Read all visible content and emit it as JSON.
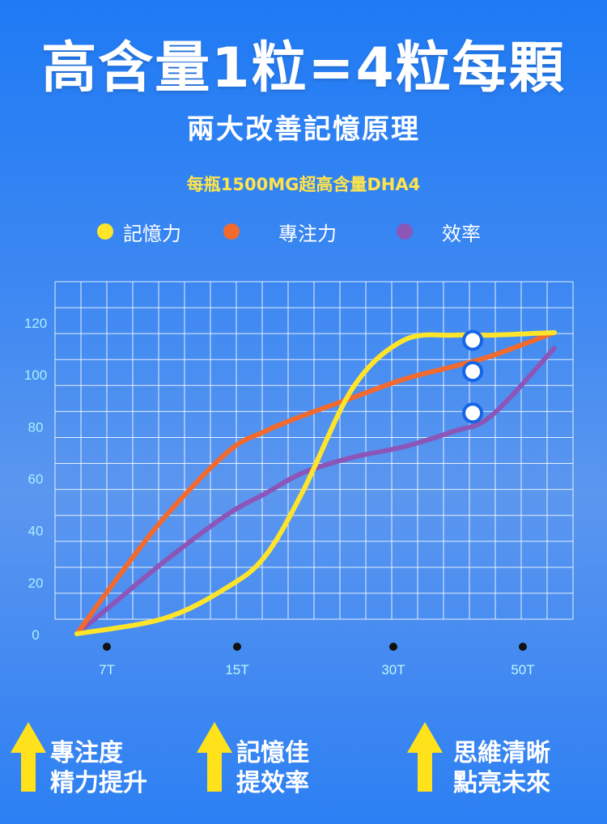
{
  "header": {
    "title": "高含量1粒=4粒每顆",
    "subtitle": "兩大改善記憶原理",
    "tagline": "每瓶1500MG超高含量DHA4"
  },
  "legend": [
    {
      "label": "記憶力",
      "color": "#ffe52a"
    },
    {
      "label": "專注力",
      "color": "#f36a2e"
    },
    {
      "label": "效率",
      "color": "#8b56b8"
    }
  ],
  "chart_data": {
    "type": "line",
    "y_ticks": [
      "0",
      "20",
      "40",
      "60",
      "80",
      "100",
      "120"
    ],
    "x_labels": [
      "7T",
      "15T",
      "30T",
      "50T"
    ],
    "ylim": [
      0,
      140
    ],
    "grid": true,
    "series": [
      {
        "name": "記憶力",
        "color": "#ffe52a",
        "points": [
          [
            0,
            0
          ],
          [
            7,
            6
          ],
          [
            12,
            18
          ],
          [
            15,
            30
          ],
          [
            18,
            55
          ],
          [
            22,
            95
          ],
          [
            26,
            113
          ],
          [
            30,
            115
          ],
          [
            33,
            115
          ],
          [
            38,
            116
          ]
        ]
      },
      {
        "name": "專注力",
        "color": "#f36a2e",
        "points": [
          [
            0,
            0
          ],
          [
            3,
            20
          ],
          [
            7,
            45
          ],
          [
            12,
            70
          ],
          [
            15,
            78
          ],
          [
            18,
            84
          ],
          [
            22,
            91
          ],
          [
            26,
            98
          ],
          [
            30,
            103
          ],
          [
            33,
            107
          ],
          [
            38,
            116
          ]
        ]
      },
      {
        "name": "效率",
        "color": "#8b56b8",
        "points": [
          [
            0,
            0
          ],
          [
            3,
            12
          ],
          [
            7,
            28
          ],
          [
            12,
            46
          ],
          [
            15,
            54
          ],
          [
            18,
            62
          ],
          [
            22,
            68
          ],
          [
            26,
            72
          ],
          [
            30,
            78
          ],
          [
            33,
            84
          ],
          [
            38,
            110
          ]
        ]
      }
    ],
    "markers": [
      {
        "x": 31.5,
        "y": 113,
        "series": "記憶力"
      },
      {
        "x": 31.5,
        "y": 101,
        "series": "專注力"
      },
      {
        "x": 31.5,
        "y": 85,
        "series": "效率"
      }
    ]
  },
  "footer": [
    {
      "line1": "專注度",
      "line2": "精力提升"
    },
    {
      "line1": "記憶佳",
      "line2": "提效率"
    },
    {
      "line1": "思維清晰",
      "line2": "點亮未來"
    }
  ]
}
